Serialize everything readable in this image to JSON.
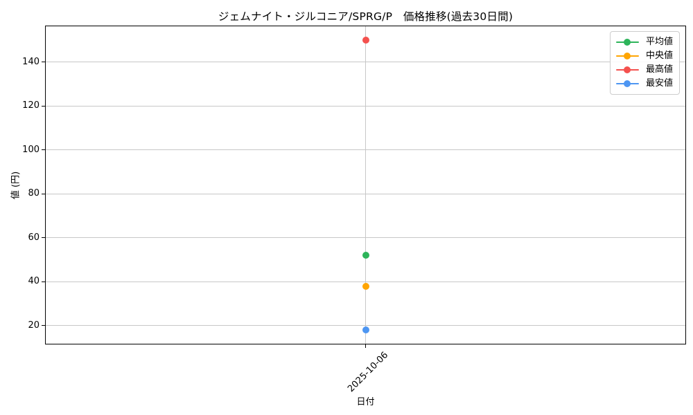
{
  "chart_data": {
    "type": "scatter",
    "title": "ジェムナイト・ジルコニア/SPRG/P　価格推移(過去30日間)",
    "xlabel": "日付",
    "ylabel": "値 (円)",
    "x_categories": [
      "2025-10-06"
    ],
    "series": [
      {
        "key": "average",
        "name": "平均値",
        "color": "#2db45a",
        "values": [
          52
        ]
      },
      {
        "key": "median",
        "name": "中央値",
        "color": "#ffa502",
        "values": [
          38
        ]
      },
      {
        "key": "max",
        "name": "最高値",
        "color": "#f4514e",
        "values": [
          150
        ]
      },
      {
        "key": "min",
        "name": "最安値",
        "color": "#4d96f2",
        "values": [
          18
        ]
      }
    ],
    "yticks": [
      20,
      40,
      60,
      80,
      100,
      120,
      140
    ],
    "ylim": [
      11.4,
      156.6
    ],
    "grid": true,
    "legend_position": "upper right",
    "axis_color": "#000000",
    "grid_color": "#c7c7c7",
    "background_color": "#ffffff"
  }
}
